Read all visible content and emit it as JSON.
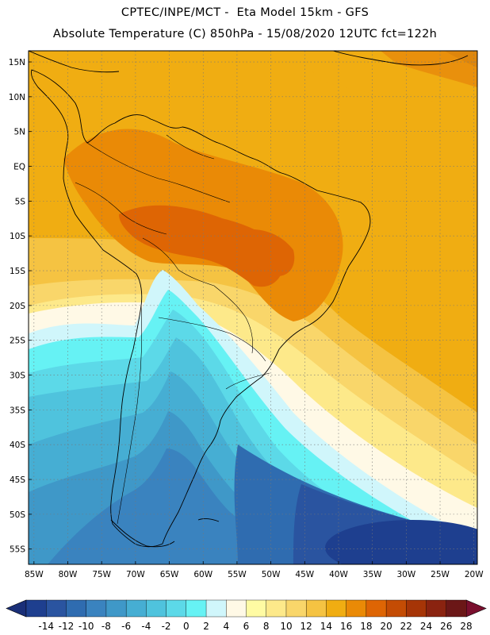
{
  "title_line1": "CPTEC/INPE/MCT -  Eta Model 15km - GFS",
  "title_line2": "Absolute Temperature (C) 850hPa - 15/08/2020 12UTC fct=122h",
  "lat_labels": [
    "15N",
    "10N",
    "5N",
    "EQ",
    "5S",
    "10S",
    "15S",
    "20S",
    "25S",
    "30S",
    "35S",
    "40S",
    "45S",
    "50S",
    "55S"
  ],
  "lon_labels": [
    "85W",
    "80W",
    "75W",
    "70W",
    "65W",
    "60W",
    "55W",
    "50W",
    "45W",
    "40W",
    "35W",
    "30W",
    "25W",
    "20W"
  ],
  "colorbar": {
    "labels": [
      "-14",
      "-12",
      "-10",
      "-8",
      "-6",
      "-4",
      "-2",
      "0",
      "2",
      "4",
      "6",
      "8",
      "10",
      "12",
      "14",
      "16",
      "18",
      "20",
      "22",
      "24",
      "26",
      "28"
    ],
    "colors": [
      "#1e3f8f",
      "#2a54a0",
      "#2f6cb0",
      "#3a83bf",
      "#3f98c8",
      "#46aed3",
      "#4fc3dd",
      "#5cd9e8",
      "#66f2f4",
      "#d0f6fb",
      "#fff9e6",
      "#fffba3",
      "#fde98a",
      "#f9d66a",
      "#f5c342",
      "#f0ad12",
      "#ea8a06",
      "#de6504",
      "#c44c04",
      "#a63507",
      "#8a2310",
      "#6b1717"
    ],
    "under_color": "#1a2f78",
    "over_color": "#7a0f2e"
  }
}
